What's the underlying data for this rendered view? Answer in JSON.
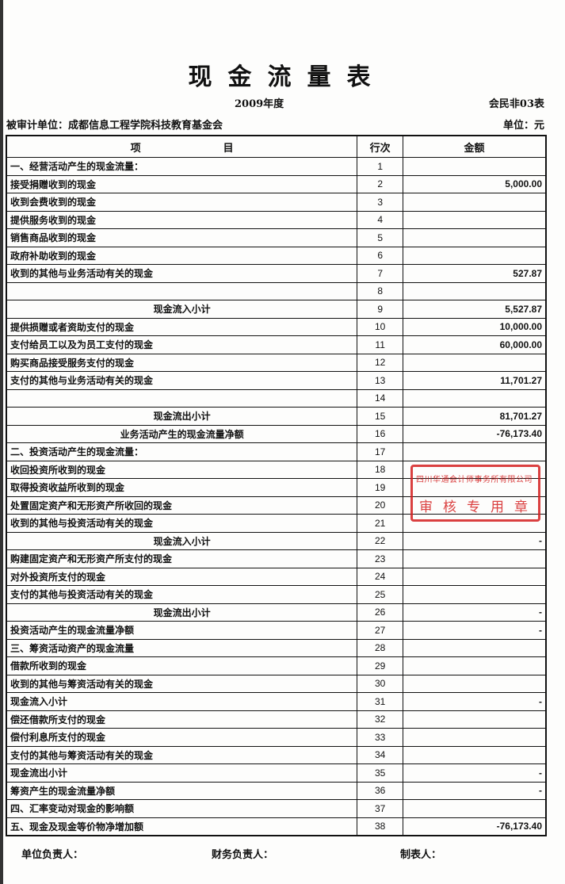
{
  "title": "现金流量表",
  "year": "2009年度",
  "form_no": "会民非03表",
  "audited_unit": "被审计单位：成都信息工程学院科技教育基金会",
  "currency_unit": "单位：元",
  "columns": [
    "项　　　　　　　　目",
    "行次",
    "金额"
  ],
  "rows": [
    {
      "label": "一、经营活动产生的现金流量：",
      "no": "1",
      "amount": ""
    },
    {
      "label": "接受捐赠收到的现金",
      "no": "2",
      "amount": "5,000.00"
    },
    {
      "label": "收到会费收到的现金",
      "no": "3",
      "amount": ""
    },
    {
      "label": "提供服务收到的现金",
      "no": "4",
      "amount": ""
    },
    {
      "label": "销售商品收到的现金",
      "no": "5",
      "amount": ""
    },
    {
      "label": "政府补助收到的现金",
      "no": "6",
      "amount": ""
    },
    {
      "label": "收到的其他与业务活动有关的现金",
      "no": "7",
      "amount": "527.87"
    },
    {
      "label": "",
      "no": "8",
      "amount": ""
    },
    {
      "label": "现金流入小计",
      "no": "9",
      "amount": "5,527.87",
      "center": true
    },
    {
      "label": "提供损赠或者资助支付的现金",
      "no": "10",
      "amount": "10,000.00"
    },
    {
      "label": "支付给员工以及为员工支付的现金",
      "no": "11",
      "amount": "60,000.00"
    },
    {
      "label": "购买商品接受服务支付的现金",
      "no": "12",
      "amount": ""
    },
    {
      "label": "支付的其他与业务活动有关的现金",
      "no": "13",
      "amount": "11,701.27"
    },
    {
      "label": "",
      "no": "14",
      "amount": ""
    },
    {
      "label": "现金流出小计",
      "no": "15",
      "amount": "81,701.27",
      "center": true
    },
    {
      "label": "业务活动产生的现金流量净额",
      "no": "16",
      "amount": "-76,173.40",
      "center": true
    },
    {
      "label": "二、投资活动产生的现金流量：",
      "no": "17",
      "amount": ""
    },
    {
      "label": "收回投资所收到的现金",
      "no": "18",
      "amount": ""
    },
    {
      "label": "取得投资收益所收到的现金",
      "no": "19",
      "amount": ""
    },
    {
      "label": "处置固定资产和无形资产所收回的现金",
      "no": "20",
      "amount": ""
    },
    {
      "label": "收到的其他与投资活动有关的现金",
      "no": "21",
      "amount": ""
    },
    {
      "label": "现金流入小计",
      "no": "22",
      "amount": "-",
      "center": true
    },
    {
      "label": "购建固定资产和无形资产所支付的现金",
      "no": "23",
      "amount": ""
    },
    {
      "label": "对外投资所支付的现金",
      "no": "24",
      "amount": ""
    },
    {
      "label": "支付的其他与投资活动有关的现金",
      "no": "25",
      "amount": ""
    },
    {
      "label": "现金流出小计",
      "no": "26",
      "amount": "-",
      "center": true
    },
    {
      "label": "投资活动产生的现金流量净额",
      "no": "27",
      "amount": "-"
    },
    {
      "label": "三、筹资活动资产的现金流量",
      "no": "28",
      "amount": ""
    },
    {
      "label": "借款所收到的现金",
      "no": "29",
      "amount": ""
    },
    {
      "label": "收到的其他与筹资活动有关的现金",
      "no": "30",
      "amount": ""
    },
    {
      "label": "现金流入小计",
      "no": "31",
      "amount": "-"
    },
    {
      "label": "偿还借款所支付的现金",
      "no": "32",
      "amount": ""
    },
    {
      "label": "偿付利息所支付的现金",
      "no": "33",
      "amount": ""
    },
    {
      "label": "支付的其他与筹资活动有关的现金",
      "no": "34",
      "amount": ""
    },
    {
      "label": "现金流出小计",
      "no": "35",
      "amount": "-"
    },
    {
      "label": "筹资产生的现金流量净额",
      "no": "36",
      "amount": "-"
    },
    {
      "label": "四、汇率变动对现金的影响额",
      "no": "37",
      "amount": ""
    },
    {
      "label": "五、现金及现金等价物净增加额",
      "no": "38",
      "amount": "-76,173.40"
    }
  ],
  "signatures": {
    "unit_head": "单位负责人：",
    "finance_head": "财务负责人：",
    "preparer": "制表人："
  },
  "stamp": {
    "line1": "四川华通会计师事务所有限公司",
    "line2": "审核专用章",
    "color": "#d42020"
  }
}
